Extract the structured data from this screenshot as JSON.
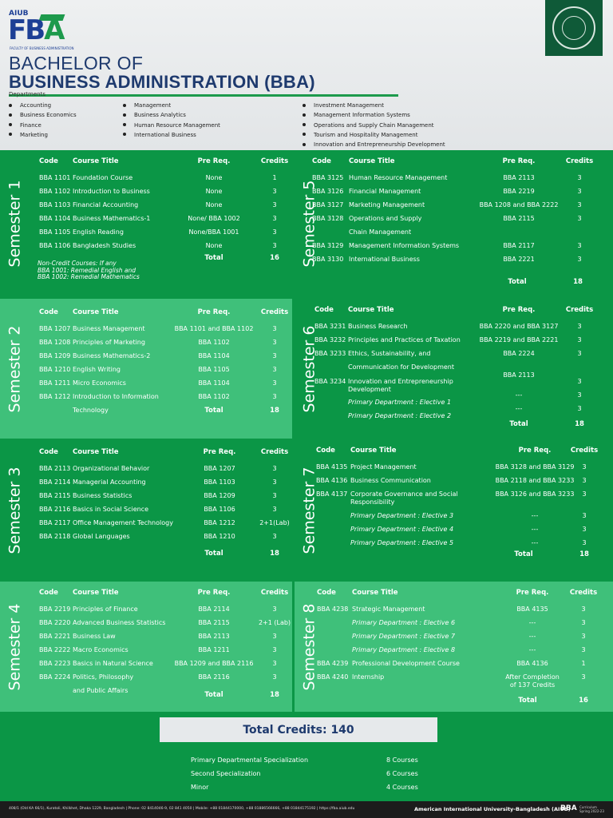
{
  "header": {
    "logo_top": "AIUB",
    "logo_main_1": "FB",
    "logo_main_2": "A",
    "logo_sub": "FACULTY OF BUSINESS ADMINISTRATION",
    "title_line1": "BACHELOR OF",
    "title_line2": "BUSINESS ADMINISTRATION (BBA)",
    "departments_label": "Departments",
    "departments": [
      [
        "Accounting",
        "Business Economics",
        "Finance",
        "Marketing"
      ],
      [
        "Management",
        "Business Analytics",
        "Human Resource Management",
        "International Business"
      ],
      [
        "Investment Management",
        "Management Information Systems",
        "Operations and Supply Chain Management",
        "Tourism and Hospitality Management",
        "Innovation and Entrepreneurship Development"
      ]
    ]
  },
  "columns": {
    "code": "Code",
    "title": "Course Title",
    "prereq": "Pre Req.",
    "credits": "Credits",
    "total": "Total"
  },
  "semesters": {
    "s1": {
      "label": "Semester 1",
      "total": "16",
      "notes": [
        "Non-Credit Courses: If any",
        "BBA 1001: Remedial English and",
        "BBA 1002: Remedial Mathematics"
      ],
      "rows": [
        [
          "BBA 1101",
          "Foundation Course",
          "None",
          "1"
        ],
        [
          "BBA 1102",
          "Introduction to Business",
          "None",
          "3"
        ],
        [
          "BBA 1103",
          "Financial Accounting",
          "None",
          "3"
        ],
        [
          "BBA 1104",
          "Business Mathematics-1",
          "None/ BBA 1002",
          "3"
        ],
        [
          "BBA 1105",
          "English Reading",
          "None/BBA 1001",
          "3"
        ],
        [
          "BBA 1106",
          "Bangladesh Studies",
          "None",
          "3"
        ]
      ]
    },
    "s2": {
      "label": "Semester 2",
      "total": "18",
      "rows": [
        [
          "BBA 1207",
          "Business Management",
          "BBA 1101 and BBA 1102",
          "3"
        ],
        [
          "BBA 1208",
          "Principles of Marketing",
          "BBA 1102",
          "3"
        ],
        [
          "BBA 1209",
          "Business Mathematics-2",
          "BBA 1104",
          "3"
        ],
        [
          "BBA 1210",
          "English Writing",
          "BBA 1105",
          "3"
        ],
        [
          "BBA 1211",
          "Micro Economics",
          "BBA 1104",
          "3"
        ],
        [
          "BBA 1212",
          "Introduction to Information",
          "BBA 1102",
          "3"
        ],
        [
          "",
          "Technology",
          "",
          ""
        ]
      ]
    },
    "s3": {
      "label": "Semester 3",
      "total": "18",
      "rows": [
        [
          "BBA 2113",
          "Organizational Behavior",
          "BBA 1207",
          "3"
        ],
        [
          "BBA 2114",
          "Managerial Accounting",
          "BBA 1103",
          "3"
        ],
        [
          "BBA 2115",
          "Business Statistics",
          "BBA 1209",
          "3"
        ],
        [
          "BBA 2116",
          "Basics in Social Science",
          "BBA 1106",
          "3"
        ],
        [
          "BBA 2117",
          "Office Management Technology",
          "BBA 1212",
          "2+1(Lab)"
        ],
        [
          "BBA 2118",
          "Global Languages",
          "BBA 1210",
          "3"
        ]
      ]
    },
    "s4": {
      "label": "Semester 4",
      "total": "18",
      "rows": [
        [
          "BBA 2219",
          "Principles of Finance",
          "BBA 2114",
          "3"
        ],
        [
          "BBA 2220",
          "Advanced Business Statistics",
          "BBA 2115",
          "2+1 (Lab)"
        ],
        [
          "BBA 2221",
          "Business Law",
          "BBA 2113",
          "3"
        ],
        [
          "BBA 2222",
          "Macro Economics",
          "BBA 1211",
          "3"
        ],
        [
          "BBA 2223",
          "Basics in Natural Science",
          "BBA 1209 and  BBA 2116",
          "3"
        ],
        [
          "BBA 2224",
          "Politics, Philosophy",
          "BBA 2116",
          "3"
        ],
        [
          "",
          "and Public Affairs",
          "",
          ""
        ]
      ]
    },
    "s5": {
      "label": "Semester 5",
      "total": "18",
      "rows": [
        [
          "BBA 3125",
          "Human Resource Management",
          "BBA 2113",
          "3"
        ],
        [
          "BBA 3126",
          "Financial Management",
          "BBA 2219",
          "3"
        ],
        [
          "BBA 3127",
          "Marketing Management",
          "BBA 1208 and BBA 2222",
          "3"
        ],
        [
          "BBA 3128",
          "Operations and Supply",
          "BBA 2115",
          "3"
        ],
        [
          "",
          "Chain Management",
          "",
          ""
        ],
        [
          "BBA 3129",
          "Management Information Systems",
          "BBA 2117",
          "3"
        ],
        [
          "BBA 3130",
          "International Business",
          "BBA 2221",
          "3"
        ]
      ]
    },
    "s6": {
      "label": "Semester 6",
      "total": "18",
      "rows": [
        [
          "BBA 3231",
          "Business Research",
          "BBA 2220 and BBA 3127",
          "3"
        ],
        [
          "BBA 3232",
          "Principles and Practices of Taxation",
          "BBA 2219 and BBA 2221",
          "3"
        ],
        [
          "BBA 3233",
          "Ethics, Sustainability, and",
          "BBA 2224",
          "3"
        ],
        [
          "",
          "Communication for Development",
          "",
          ""
        ],
        [
          "",
          "",
          "BBA 2113",
          ""
        ],
        [
          "BBA 3234",
          "Innovation and Entrepreneurship",
          "",
          "3"
        ],
        [
          "",
          "Development",
          "",
          ""
        ],
        [
          "",
          "",
          "---",
          "3"
        ],
        [
          "",
          "Primary Department : Elective 1",
          "",
          ""
        ],
        [
          "",
          "",
          "---",
          "3"
        ],
        [
          "",
          "Primary Department : Elective 2",
          "",
          ""
        ]
      ]
    },
    "s7": {
      "label": "Semester 7",
      "total": "18",
      "rows": [
        [
          "BBA 4135",
          "Project Management",
          "BBA 3128 and BBA 3129",
          "3"
        ],
        [
          "BBA 4136",
          "Business Communication",
          "BBA 2118 and BBA 3233",
          "3"
        ],
        [
          "BBA 4137",
          "Corporate Governance and Social",
          "BBA 3126 and BBA 3233",
          "3"
        ],
        [
          "",
          "Responsibility",
          "",
          ""
        ],
        [
          "",
          "Primary Department : Elective 3",
          "---",
          "3"
        ],
        [
          "",
          "Primary Department : Elective 4",
          "---",
          "3"
        ],
        [
          "",
          "Primary Department : Elective 5",
          "---",
          "3"
        ]
      ]
    },
    "s8": {
      "label": "Semester 8",
      "total": "16",
      "rows": [
        [
          "BBA 4238",
          "Strategic Management",
          "BBA 4135",
          "3"
        ],
        [
          "",
          "Primary Department : Elective 6",
          "---",
          "3"
        ],
        [
          "",
          "Primary Department : Elective 7",
          "---",
          "3"
        ],
        [
          "",
          "Primary Department : Elective 8",
          "---",
          "3"
        ],
        [
          "BBA 4239",
          "Professional Development Course",
          "BBA 4136",
          "1"
        ],
        [
          "BBA 4240",
          "Internship",
          "After Completion",
          "3"
        ],
        [
          "",
          "",
          "of 137 Credits",
          ""
        ]
      ]
    }
  },
  "total_credits": "Total Credits: 140",
  "specializations": [
    [
      "Primary Departmental Specialization",
      "8 Courses"
    ],
    [
      "Second Specialization",
      "6 Courses"
    ],
    [
      "Minor",
      "4 Courses"
    ]
  ],
  "footer": {
    "address": "408/1 (Old KA 66/1), Kuratoli, Khilkhet, Dhaka 1229, Bangladesh  |  Phone: 02 8414046-9, 02 841 4050  |  Mobile: +88 01844170000, +88 01886566666, +88 01844175192  |  https://fba.aiub.edu",
    "university": "American International University-Bangladesh (AIUB)",
    "bba": "BBA",
    "curriculum_1": "Curriculum",
    "curriculum_2": "Spring 2022-23"
  }
}
